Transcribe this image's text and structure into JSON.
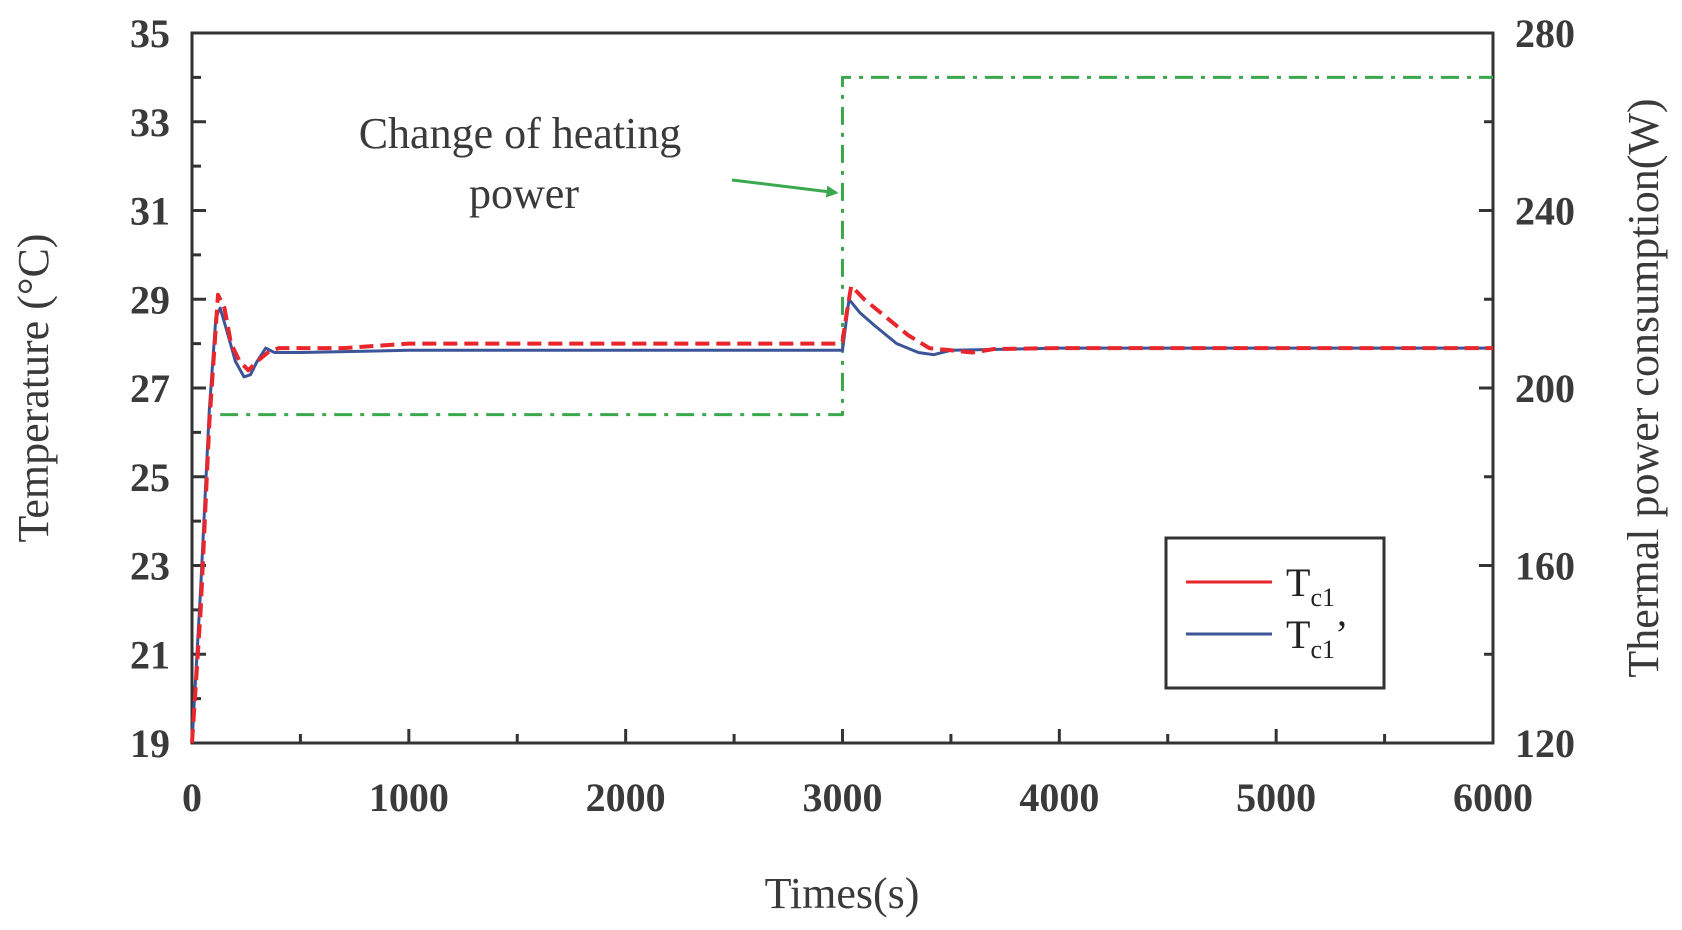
{
  "chart_data": {
    "type": "line",
    "xlabel": "Times(s)",
    "ylabel_left": "Temperature (°C)",
    "ylabel_right": "Thermal power consumption(W)",
    "xlim": [
      0,
      6000
    ],
    "ylim_left": [
      19,
      35
    ],
    "ylim_right": [
      120,
      280
    ],
    "x_ticks": [
      "0",
      "1000",
      "2000",
      "3000",
      "4000",
      "5000",
      "6000"
    ],
    "y_left_ticks": [
      "19",
      "21",
      "23",
      "25",
      "27",
      "29",
      "31",
      "33",
      "35"
    ],
    "y_right_ticks": [
      "120",
      "160",
      "200",
      "240",
      "280"
    ],
    "annotation": {
      "lines": [
        "Change of heating",
        "power"
      ],
      "target": {
        "x": 3000,
        "y_right": 244
      }
    },
    "legend": {
      "position": "lower-right",
      "entries": [
        {
          "main": "T",
          "sub": "c1",
          "suffix": ""
        },
        {
          "main": "T",
          "sub": "c1",
          "suffix": "’"
        }
      ]
    },
    "series": [
      {
        "name": "Tc1",
        "axis": "left",
        "color": "#e8262c",
        "dash": "dashed",
        "points": [
          [
            0,
            19
          ],
          [
            40,
            22
          ],
          [
            80,
            26.2
          ],
          [
            120,
            29.1
          ],
          [
            150,
            28.8
          ],
          [
            180,
            28.0
          ],
          [
            220,
            27.6
          ],
          [
            260,
            27.4
          ],
          [
            300,
            27.6
          ],
          [
            350,
            27.8
          ],
          [
            400,
            27.9
          ],
          [
            700,
            27.9
          ],
          [
            1000,
            28.0
          ],
          [
            2000,
            28.0
          ],
          [
            2980,
            28.0
          ],
          [
            3000,
            28.05
          ],
          [
            3020,
            28.7
          ],
          [
            3040,
            29.3
          ],
          [
            3100,
            29.0
          ],
          [
            3200,
            28.6
          ],
          [
            3300,
            28.2
          ],
          [
            3400,
            27.9
          ],
          [
            3500,
            27.85
          ],
          [
            3600,
            27.8
          ],
          [
            3700,
            27.88
          ],
          [
            4000,
            27.9
          ],
          [
            6000,
            27.9
          ]
        ]
      },
      {
        "name": "Tc1’",
        "axis": "left",
        "color": "#3b5598",
        "dash": "solid",
        "points": [
          [
            0,
            19
          ],
          [
            40,
            22.5
          ],
          [
            80,
            26.5
          ],
          [
            110,
            28.6
          ],
          [
            130,
            28.8
          ],
          [
            160,
            28.3
          ],
          [
            200,
            27.6
          ],
          [
            240,
            27.25
          ],
          [
            270,
            27.3
          ],
          [
            300,
            27.6
          ],
          [
            340,
            27.9
          ],
          [
            380,
            27.8
          ],
          [
            500,
            27.8
          ],
          [
            1000,
            27.85
          ],
          [
            2000,
            27.85
          ],
          [
            3000,
            27.85
          ],
          [
            3030,
            29.0
          ],
          [
            3080,
            28.7
          ],
          [
            3150,
            28.4
          ],
          [
            3250,
            28.0
          ],
          [
            3350,
            27.8
          ],
          [
            3420,
            27.75
          ],
          [
            3500,
            27.85
          ],
          [
            4000,
            27.9
          ],
          [
            6000,
            27.9
          ]
        ]
      },
      {
        "name": "Heating power",
        "axis": "right",
        "color": "#3aa84c",
        "dash": "dashdot",
        "points": [
          [
            130,
            194
          ],
          [
            3000,
            194
          ],
          [
            3000,
            270
          ],
          [
            6000,
            270
          ]
        ]
      }
    ]
  }
}
